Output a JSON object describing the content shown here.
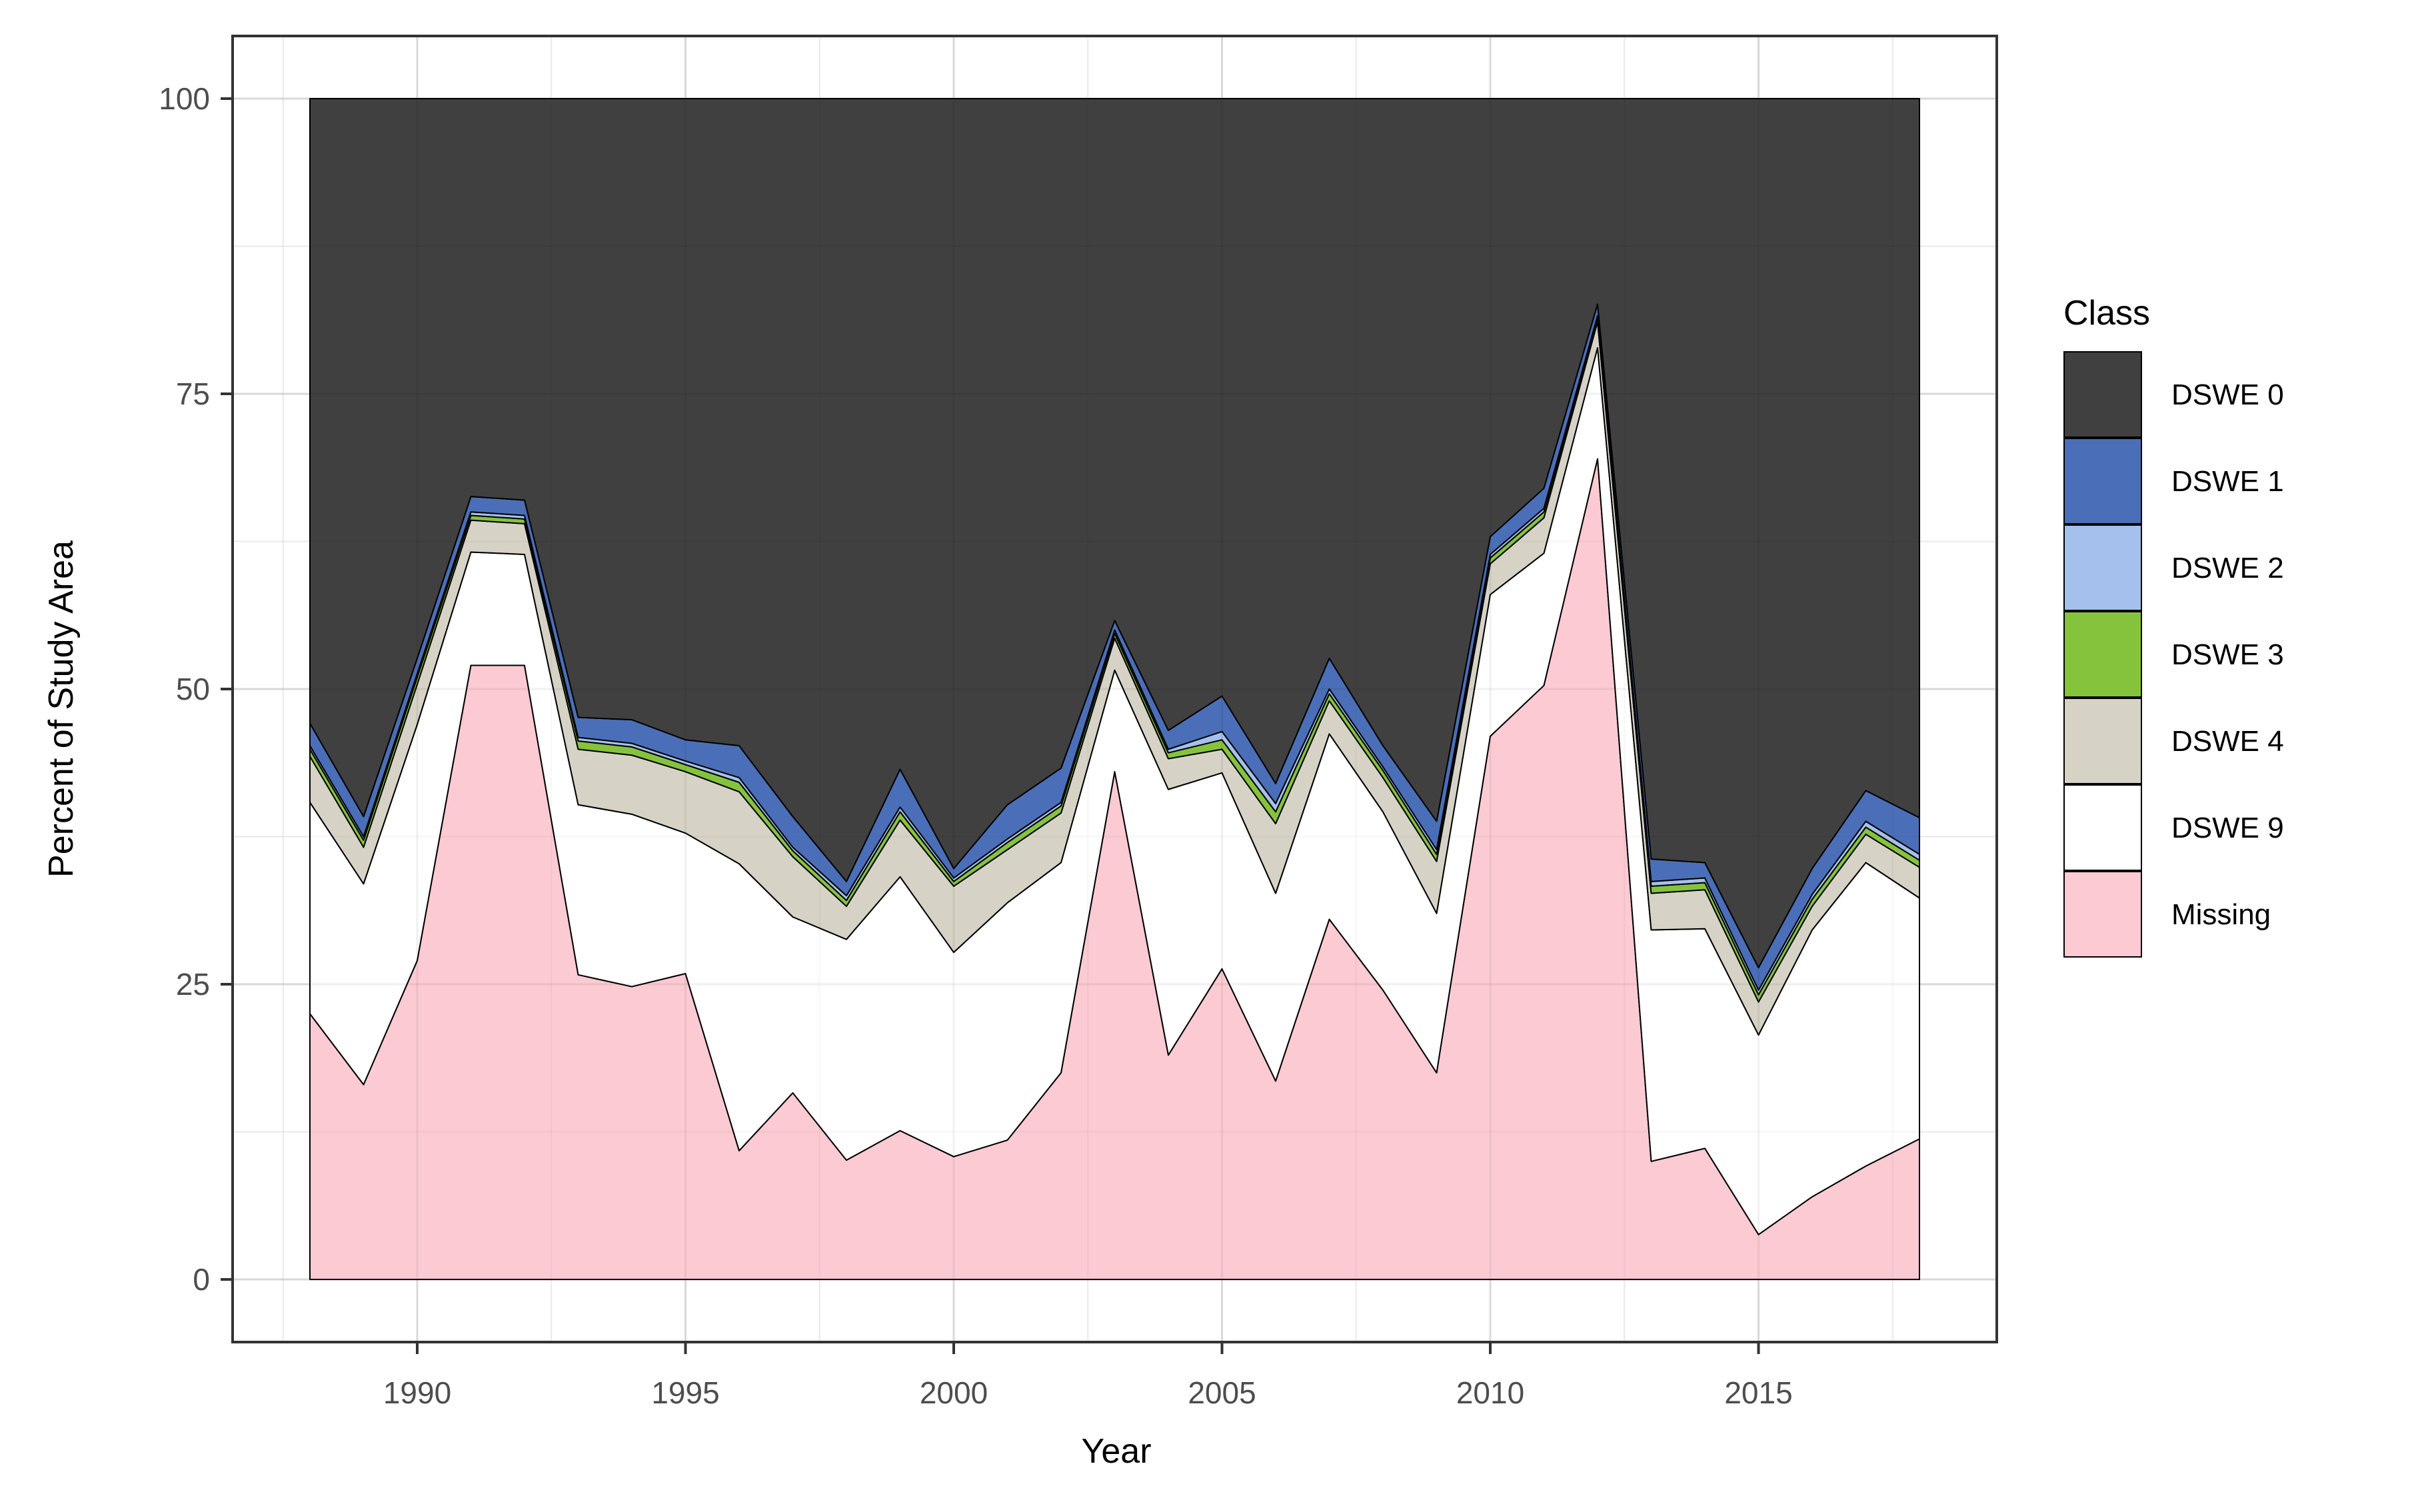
{
  "chart_data": {
    "type": "area",
    "stacked": true,
    "xlabel": "Year",
    "ylabel": "Percent of Study Area",
    "x": [
      1988,
      1989,
      1990,
      1991,
      1992,
      1993,
      1994,
      1995,
      1996,
      1997,
      1998,
      1999,
      2000,
      2001,
      2002,
      2003,
      2004,
      2005,
      2006,
      2007,
      2008,
      2009,
      2010,
      2011,
      2012,
      2013,
      2014,
      2015,
      2016,
      2017,
      2018
    ],
    "x_ticks": [
      1990,
      1995,
      2000,
      2005,
      2010,
      2015
    ],
    "x_minor_ticks": [
      1987.5,
      1992.5,
      1997.5,
      2002.5,
      2007.5,
      2012.5,
      2017.5
    ],
    "y_ticks": [
      0,
      25,
      50,
      75,
      100
    ],
    "y_minor_ticks": [
      12.5,
      37.5,
      62.5,
      87.5
    ],
    "ylim": [
      0,
      100
    ],
    "grid": true,
    "legend": {
      "title": "Class",
      "position": "right",
      "entries": [
        {
          "label": "DSWE 0",
          "color": "#404040"
        },
        {
          "label": "DSWE 1",
          "color": "#4a6fb8"
        },
        {
          "label": "DSWE 2",
          "color": "#a5c0ec"
        },
        {
          "label": "DSWE 3",
          "color": "#86c33d"
        },
        {
          "label": "DSWE 4",
          "color": "#d6d2c6"
        },
        {
          "label": "DSWE 9",
          "color": "#ffffff"
        },
        {
          "label": "Missing",
          "color": "#fbcad3"
        }
      ]
    },
    "series": [
      {
        "name": "Missing",
        "color": "#fbcad3",
        "values": [
          22.5,
          16.5,
          27.0,
          52.0,
          52.0,
          25.8,
          24.8,
          25.9,
          10.9,
          15.8,
          10.1,
          12.6,
          10.4,
          11.8,
          17.5,
          43.0,
          19.0,
          26.3,
          16.8,
          30.5,
          24.5,
          17.5,
          46.0,
          50.3,
          69.5,
          10.0,
          11.1,
          3.8,
          7.0,
          9.6,
          11.9
        ]
      },
      {
        "name": "DSWE 9",
        "color": "#ffffff",
        "values": [
          17.9,
          17.0,
          20.0,
          9.6,
          9.4,
          14.4,
          14.6,
          11.9,
          24.3,
          14.9,
          18.7,
          21.5,
          17.3,
          20.1,
          17.8,
          8.6,
          22.5,
          16.6,
          15.9,
          15.7,
          15.1,
          13.5,
          12.0,
          11.2,
          9.4,
          19.6,
          18.6,
          16.9,
          22.6,
          25.7,
          20.4
        ]
      },
      {
        "name": "DSWE 4",
        "color": "#d6d2c6",
        "values": [
          3.9,
          3.1,
          3.4,
          2.7,
          2.6,
          4.7,
          5.0,
          5.2,
          6.1,
          5.1,
          2.8,
          4.8,
          5.6,
          4.5,
          4.2,
          2.7,
          2.6,
          2.0,
          5.9,
          2.8,
          2.9,
          4.4,
          2.6,
          3.0,
          2.2,
          3.1,
          3.3,
          2.8,
          2.0,
          2.4,
          2.6
        ]
      },
      {
        "name": "DSWE 3",
        "color": "#86c33d",
        "values": [
          0.6,
          0.6,
          0.6,
          0.4,
          0.4,
          0.7,
          0.7,
          0.6,
          0.8,
          0.5,
          0.5,
          0.7,
          0.4,
          0.6,
          0.6,
          0.4,
          0.5,
          0.8,
          1.0,
          0.6,
          0.6,
          0.6,
          0.5,
          0.5,
          0.3,
          0.6,
          0.6,
          0.6,
          0.6,
          0.6,
          0.6
        ]
      },
      {
        "name": "DSWE 2",
        "color": "#a5c0ec",
        "values": [
          0.3,
          0.3,
          0.3,
          0.3,
          0.3,
          0.3,
          0.3,
          0.3,
          0.4,
          0.3,
          0.4,
          0.4,
          0.3,
          0.3,
          0.3,
          0.3,
          0.3,
          0.7,
          0.7,
          0.4,
          0.3,
          0.4,
          0.3,
          0.3,
          0.2,
          0.4,
          0.4,
          0.4,
          0.4,
          0.5,
          0.5
        ]
      },
      {
        "name": "DSWE 1",
        "color": "#4a6fb8",
        "values": [
          1.9,
          1.7,
          1.3,
          1.3,
          1.3,
          1.7,
          2.0,
          1.8,
          2.7,
          2.6,
          1.2,
          3.2,
          0.8,
          2.9,
          2.9,
          0.8,
          1.6,
          3.0,
          1.7,
          2.6,
          1.8,
          2.4,
          1.5,
          1.7,
          1.0,
          1.9,
          1.3,
          1.9,
          2.2,
          2.6,
          3.1
        ]
      },
      {
        "name": "DSWE 0",
        "color": "#404040",
        "values": [
          52.9,
          60.8,
          47.4,
          33.7,
          34.0,
          52.4,
          52.6,
          54.3,
          54.8,
          60.8,
          66.3,
          56.8,
          65.2,
          59.8,
          56.7,
          44.2,
          53.5,
          50.6,
          58.0,
          47.4,
          54.8,
          61.2,
          37.1,
          33.0,
          17.4,
          64.4,
          64.7,
          73.6,
          65.2,
          58.6,
          60.9
        ]
      }
    ]
  },
  "style": {
    "panel_border_color": "#333333",
    "tick_label_color": "#4d4d4d",
    "grid_major_color": "#e6e6e6",
    "grid_minor_color": "#f2f2f2",
    "area_outline_color": "#000000"
  }
}
